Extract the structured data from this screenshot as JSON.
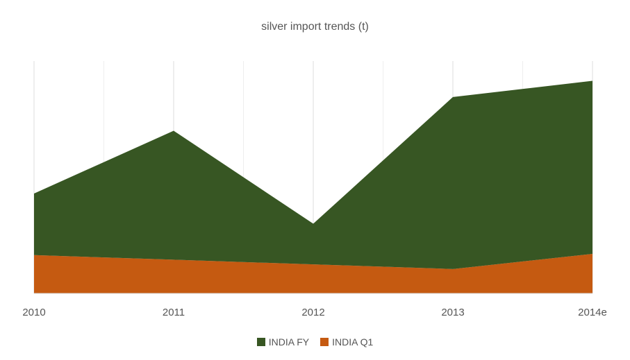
{
  "chart_data": {
    "type": "area",
    "title": "silver import trends (t)",
    "xlabel": "",
    "ylabel": "",
    "categories": [
      "2010",
      "2011",
      "2012",
      "2013",
      "2014e"
    ],
    "stacked": true,
    "y_axis_labels_shown": false,
    "ylim": [
      0,
      1
    ],
    "grid": "vertical",
    "legend_position": "bottom",
    "series": [
      {
        "name": "INDIA Q1",
        "color": "#c55a11",
        "values": [
          0.165,
          0.145,
          0.125,
          0.105,
          0.17
        ]
      },
      {
        "name": "INDIA FY",
        "color": "#375623",
        "values": [
          0.265,
          0.555,
          0.175,
          0.74,
          0.745
        ]
      }
    ],
    "legend": [
      {
        "name": "INDIA FY",
        "color": "#375623"
      },
      {
        "name": "INDIA Q1",
        "color": "#c55a11"
      }
    ]
  }
}
